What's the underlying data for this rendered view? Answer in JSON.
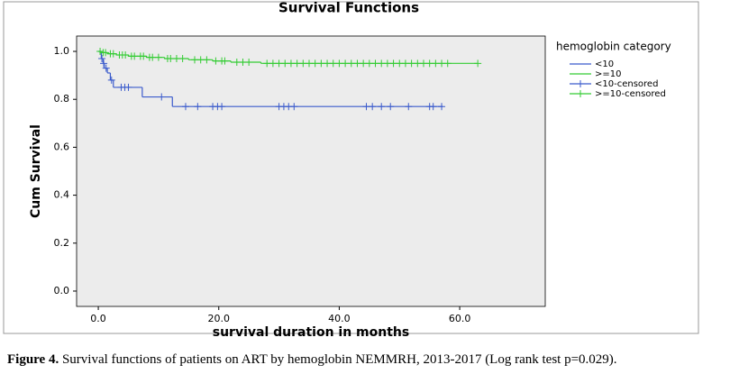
{
  "chart_data": {
    "type": "survival",
    "title": "Survival Functions",
    "x_label": "survival duration in months",
    "y_label": "Cum Survival",
    "legend_title": "hemoglobin category",
    "xlim": [
      -3.6,
      74.2
    ],
    "ylim": [
      -0.064,
      1.064
    ],
    "xticks": [
      {
        "value": 0,
        "label": "0.0"
      },
      {
        "value": 20,
        "label": "20.0"
      },
      {
        "value": 40,
        "label": "40.0"
      },
      {
        "value": 60,
        "label": "60.0"
      }
    ],
    "yticks": [
      {
        "value": 0,
        "label": "0.0"
      },
      {
        "value": 0.2,
        "label": "0.2"
      },
      {
        "value": 0.4,
        "label": "0.4"
      },
      {
        "value": 0.6,
        "label": "0.6"
      },
      {
        "value": 0.8,
        "label": "0.8"
      },
      {
        "value": 1,
        "label": "1.0"
      }
    ],
    "series": [
      {
        "name": "<10",
        "style": "step",
        "color": "#3b5bcc",
        "x": [
          0,
          0.5,
          0.8,
          1.0,
          1.5,
          2.0,
          2.5,
          7.3,
          12.3,
          57.2
        ],
        "values": [
          1.0,
          0.97,
          0.95,
          0.93,
          0.91,
          0.88,
          0.85,
          0.81,
          0.77,
          0.77
        ]
      },
      {
        "name": ">=10",
        "style": "step",
        "color": "#33cc33",
        "x": [
          0,
          0.5,
          1.5,
          3,
          5,
          8,
          11,
          15,
          19,
          22,
          27,
          63
        ],
        "values": [
          1.0,
          0.995,
          0.99,
          0.985,
          0.98,
          0.975,
          0.97,
          0.965,
          0.96,
          0.955,
          0.95,
          0.95
        ]
      },
      {
        "name": "<10-censored",
        "style": "censored",
        "color": "#3b5bcc",
        "x": [
          0.6,
          0.9,
          1.3,
          2.2,
          3.8,
          4.4,
          5.0,
          10.5,
          14.5,
          16.5,
          19,
          19.8,
          20.5,
          30,
          30.8,
          31.6,
          32.5,
          44.5,
          45.5,
          47,
          48.5,
          51.5,
          55,
          55.6,
          57
        ],
        "values": [
          0.97,
          0.95,
          0.93,
          0.88,
          0.85,
          0.85,
          0.85,
          0.81,
          0.77,
          0.77,
          0.77,
          0.77,
          0.77,
          0.77,
          0.77,
          0.77,
          0.77,
          0.77,
          0.77,
          0.77,
          0.77,
          0.77,
          0.77,
          0.77,
          0.77
        ]
      },
      {
        "name": ">=10-censored",
        "style": "censored",
        "color": "#33cc33",
        "x": [
          0.3,
          0.8,
          1.2,
          2,
          2.5,
          3.5,
          4,
          4.5,
          5.5,
          6,
          7,
          7.5,
          8.5,
          9,
          10,
          11.5,
          12,
          13,
          14,
          16,
          17,
          18,
          19.5,
          20.5,
          21,
          23,
          24,
          25,
          28,
          29,
          30,
          31,
          32,
          33,
          34,
          35,
          36,
          37,
          38,
          39,
          40,
          41,
          42,
          43,
          44,
          45,
          46,
          47,
          48,
          49,
          50,
          51,
          52,
          53,
          54,
          55,
          56,
          57,
          58,
          63
        ],
        "values": [
          1.0,
          0.995,
          0.995,
          0.99,
          0.99,
          0.985,
          0.985,
          0.985,
          0.98,
          0.98,
          0.98,
          0.98,
          0.975,
          0.975,
          0.975,
          0.97,
          0.97,
          0.97,
          0.97,
          0.965,
          0.965,
          0.965,
          0.96,
          0.96,
          0.96,
          0.955,
          0.955,
          0.955,
          0.95,
          0.95,
          0.95,
          0.95,
          0.95,
          0.95,
          0.95,
          0.95,
          0.95,
          0.95,
          0.95,
          0.95,
          0.95,
          0.95,
          0.95,
          0.95,
          0.95,
          0.95,
          0.95,
          0.95,
          0.95,
          0.95,
          0.95,
          0.95,
          0.95,
          0.95,
          0.95,
          0.95,
          0.95,
          0.95,
          0.95,
          0.95
        ]
      }
    ]
  },
  "caption": {
    "label": "Figure 4.",
    "text": " Survival functions of patients on ART by hemoglobin NEMMRH, 2013-2017 (Log rank test p=0.029)."
  }
}
